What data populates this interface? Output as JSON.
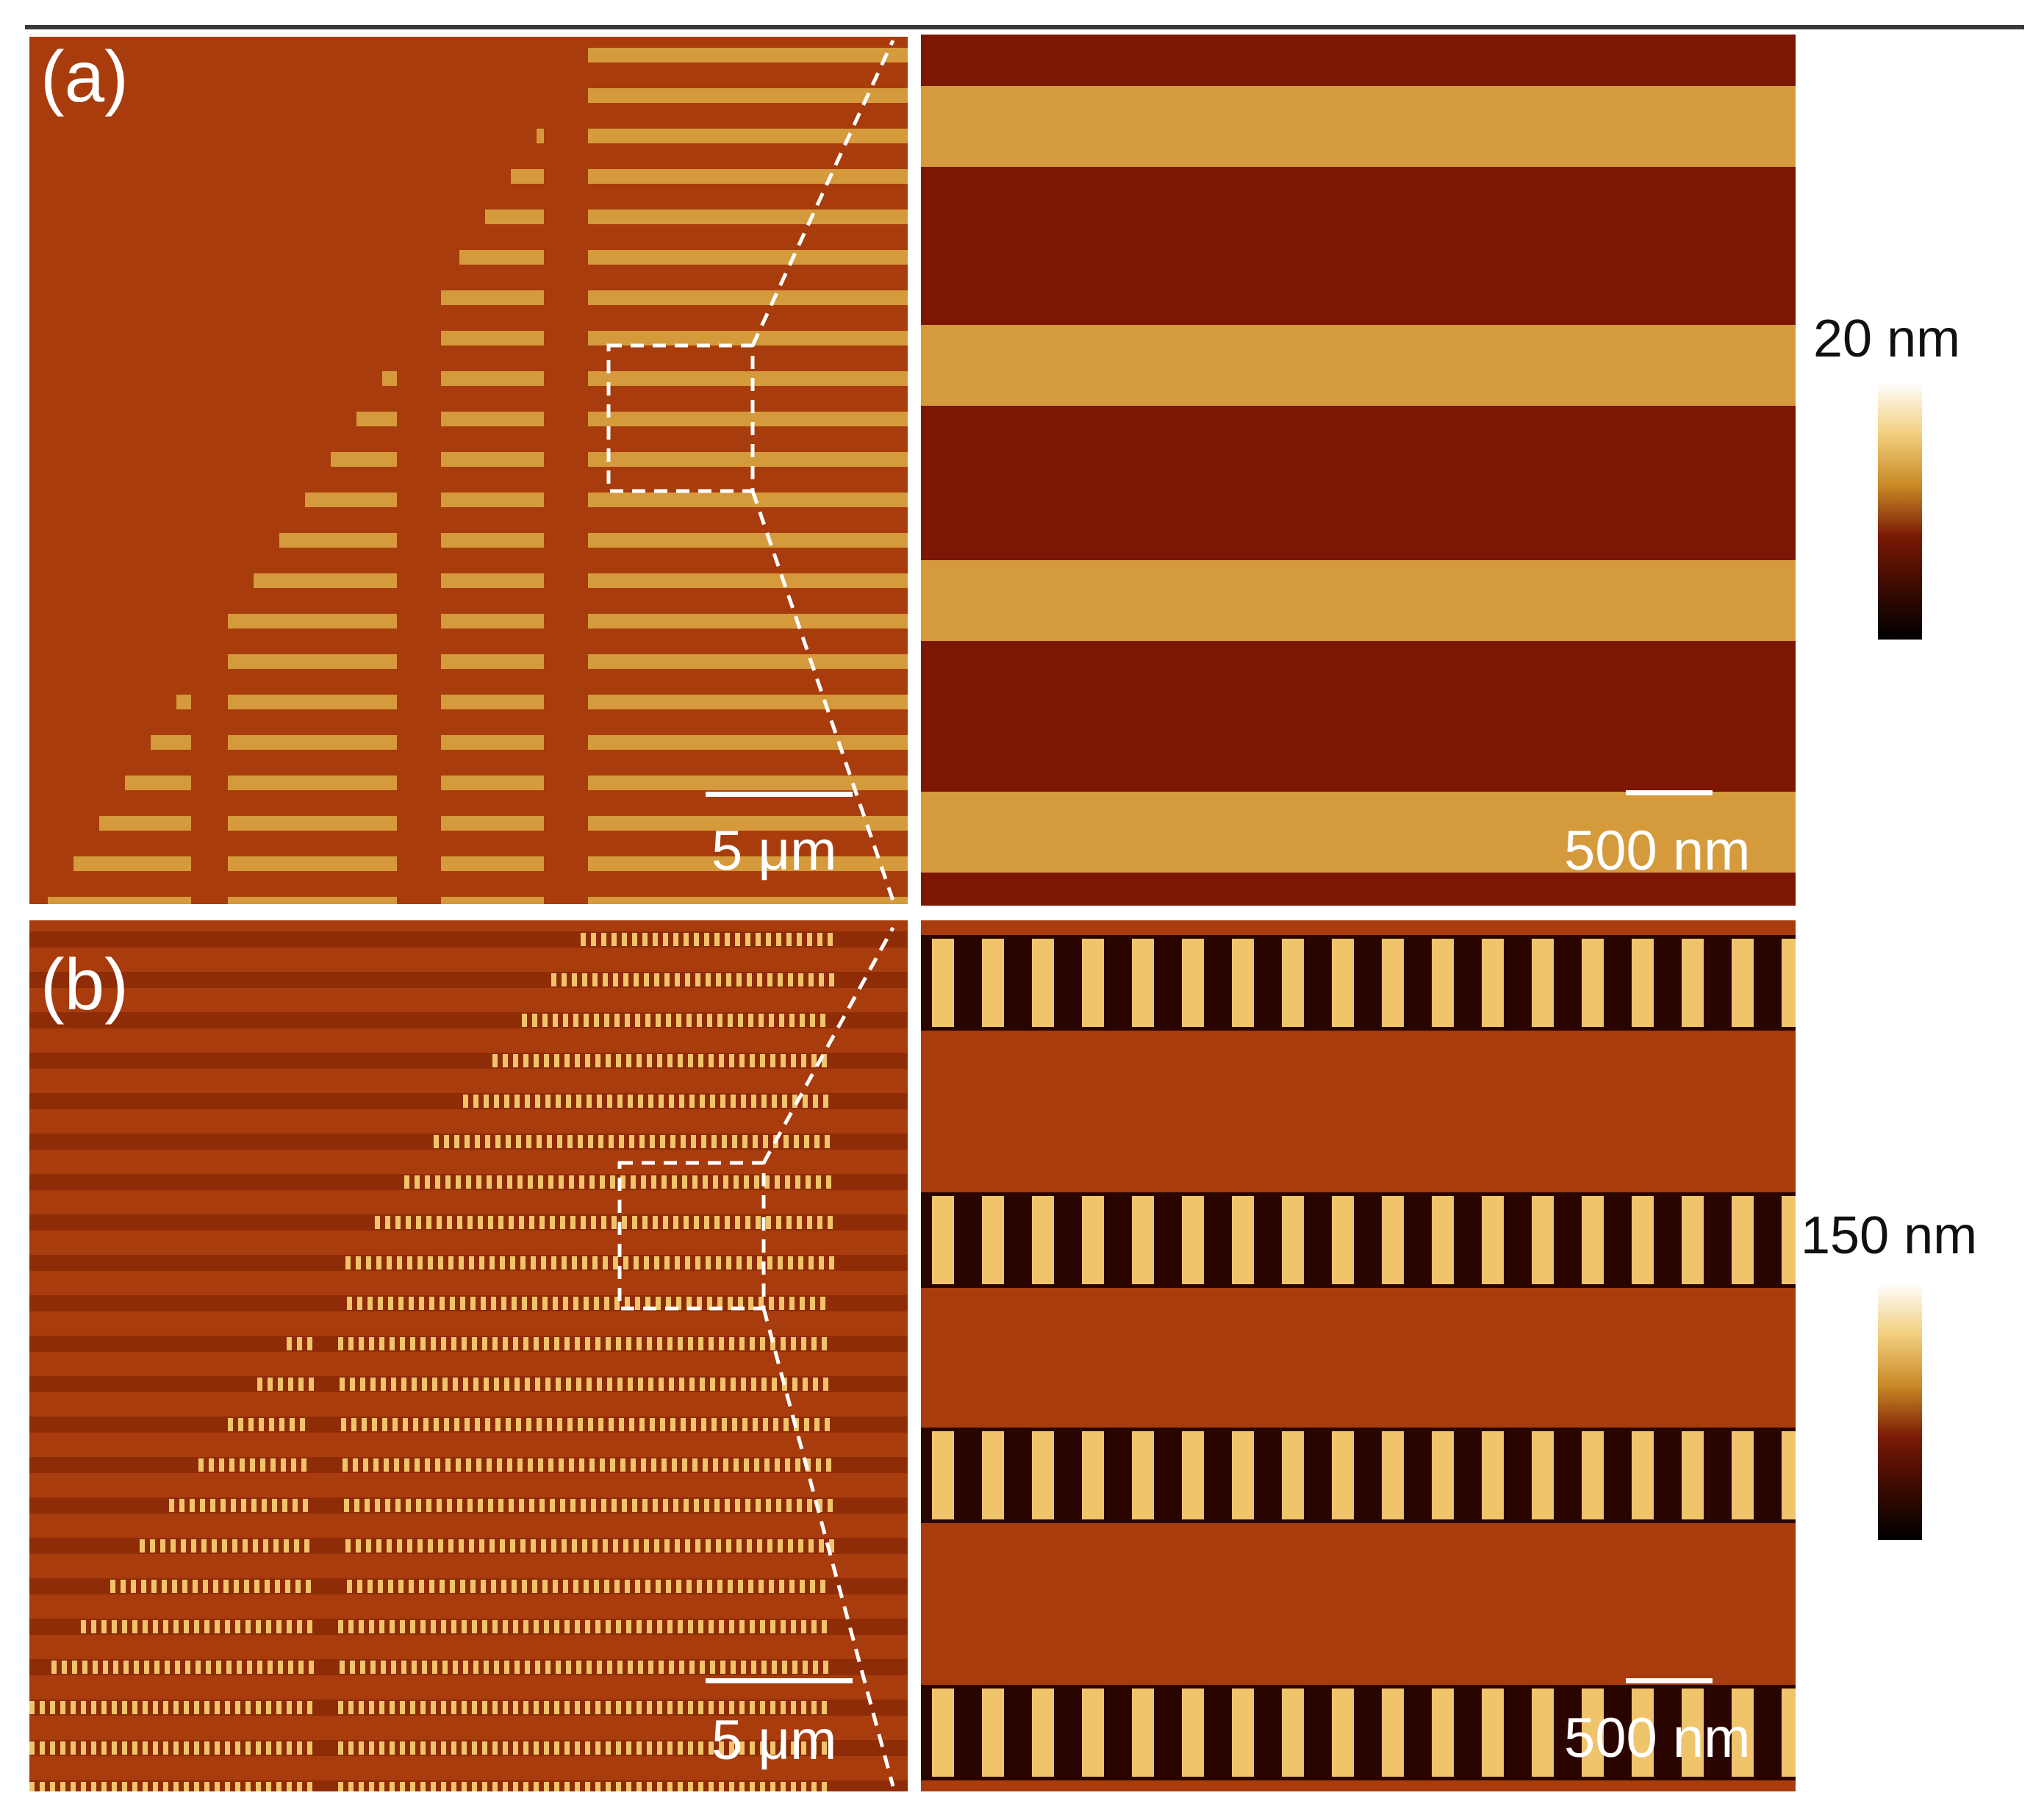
{
  "panels": [
    {
      "id": "a",
      "label": "(a)",
      "overview_scale": "5 μm",
      "zoom_scale": "500 nm",
      "colorbar_max": "20 nm"
    },
    {
      "id": "b",
      "label": "(b)",
      "overview_scale": "5 μm",
      "zoom_scale": "500 nm",
      "colorbar_max": "150 nm"
    }
  ],
  "colors": {
    "substrate": "#a83c0c",
    "stripe_light": "#d59a3c",
    "stripe_dark": "#7c1605",
    "pillar_light": "#f0c46a",
    "pillar_dark": "#2a0500",
    "colorbar_stops": [
      "#ffffff",
      "#f2cf7e",
      "#c98a26",
      "#7a1a05",
      "#3a0a00",
      "#000000"
    ]
  }
}
